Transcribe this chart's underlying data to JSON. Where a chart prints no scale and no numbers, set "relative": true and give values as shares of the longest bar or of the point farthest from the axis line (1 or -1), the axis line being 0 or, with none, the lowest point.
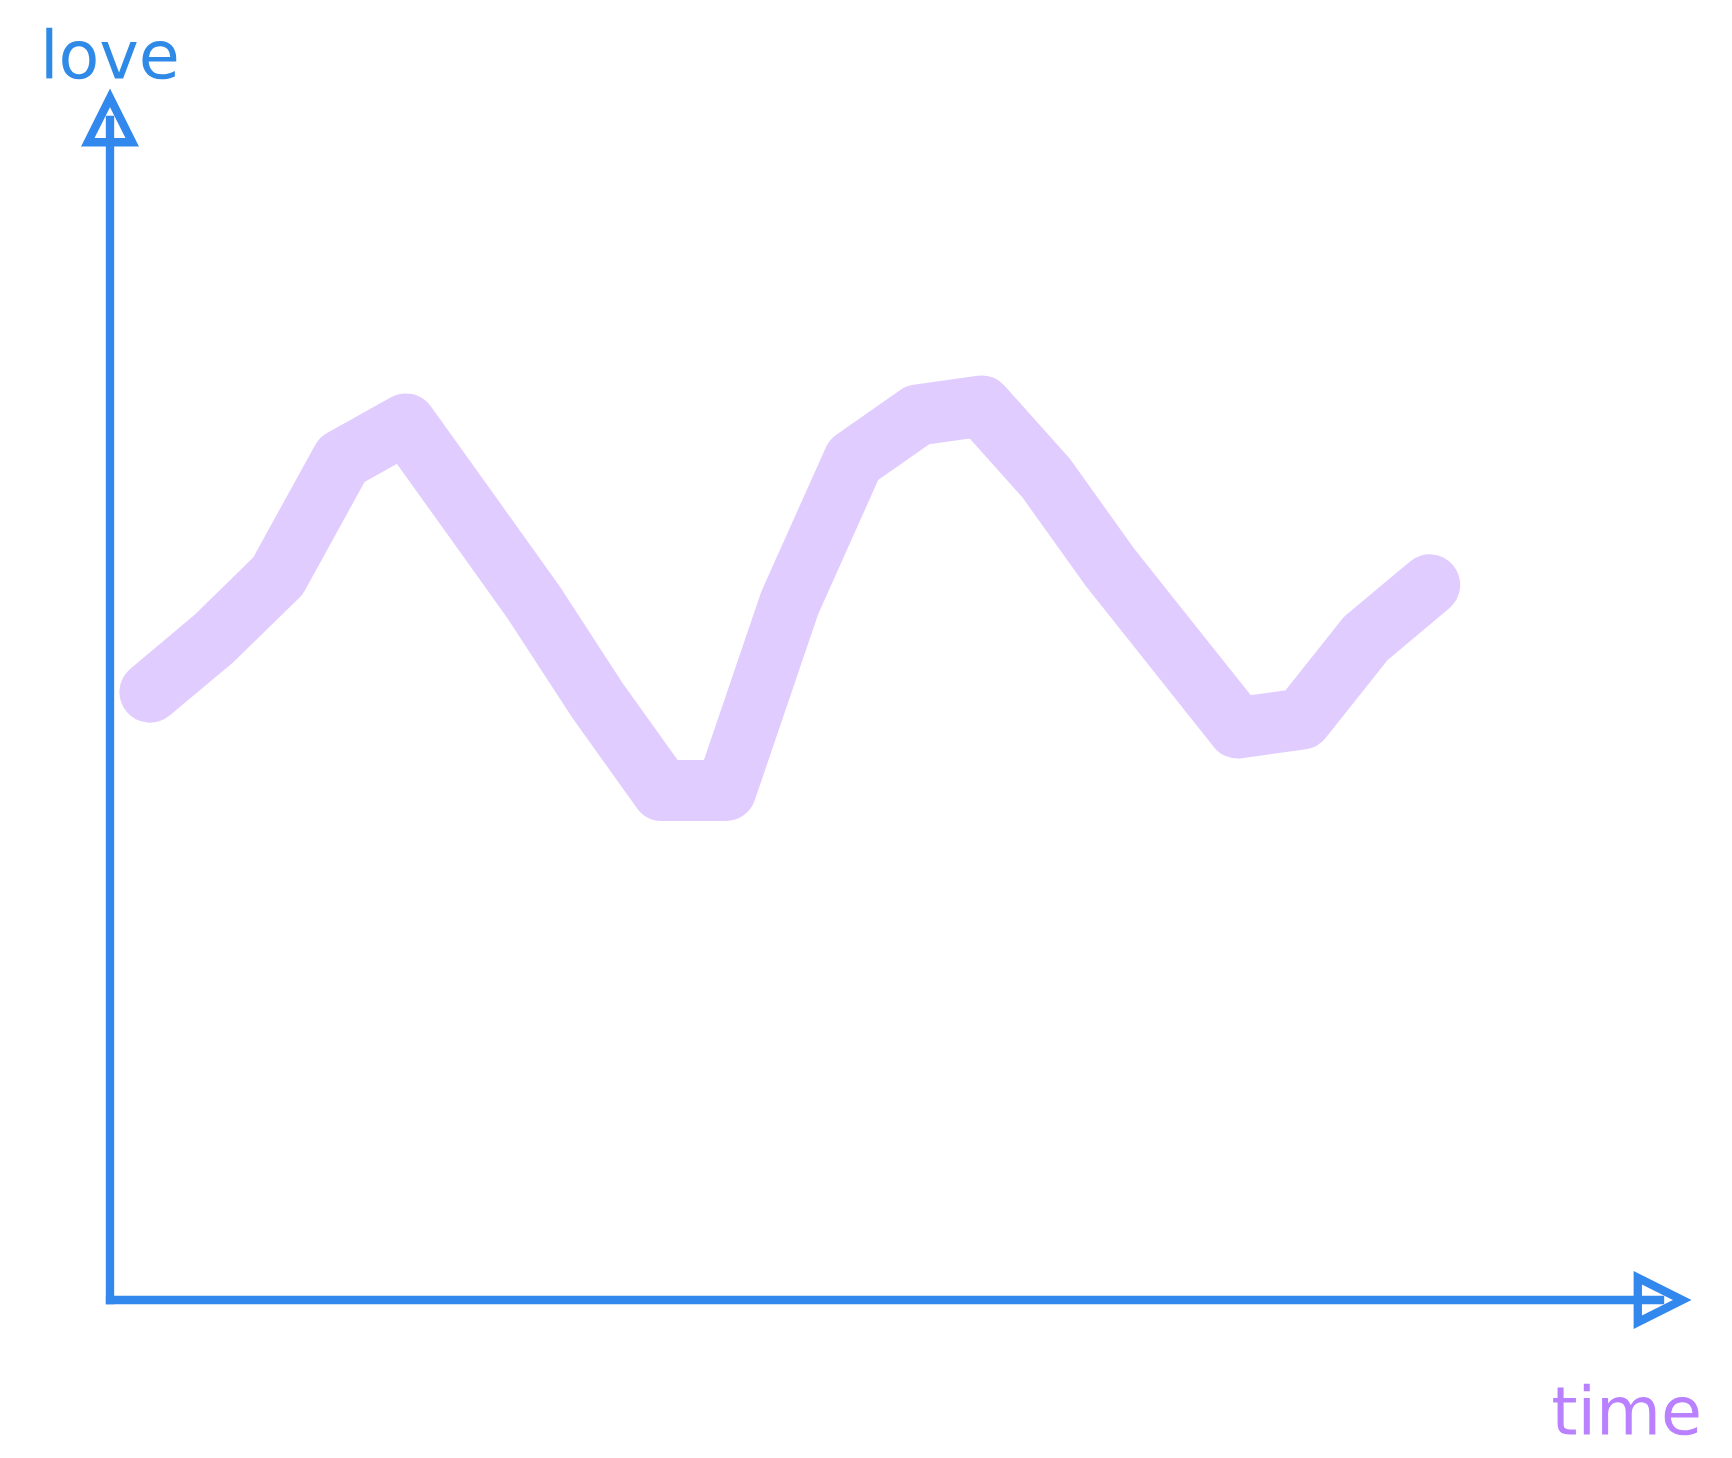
{
  "chart_data": {
    "type": "line",
    "relative": true,
    "xlabel": "time",
    "ylabel": "love",
    "categories": [
      null,
      null,
      null,
      null,
      null,
      null,
      null,
      null,
      null,
      null,
      null,
      null,
      null,
      null,
      null,
      null,
      null,
      null,
      null,
      null,
      null
    ],
    "series": [
      {
        "color": "#e0ccff",
        "values": [
          0.68,
          0.74,
          0.81,
          0.94,
          0.98,
          0.88,
          0.78,
          0.67,
          0.57,
          0.57,
          0.78,
          0.94,
          0.99,
          1,
          0.92,
          0.82,
          0.73,
          0.64,
          0.65,
          0.74,
          0.8
        ]
      }
    ],
    "grid": false,
    "legend": false
  }
}
